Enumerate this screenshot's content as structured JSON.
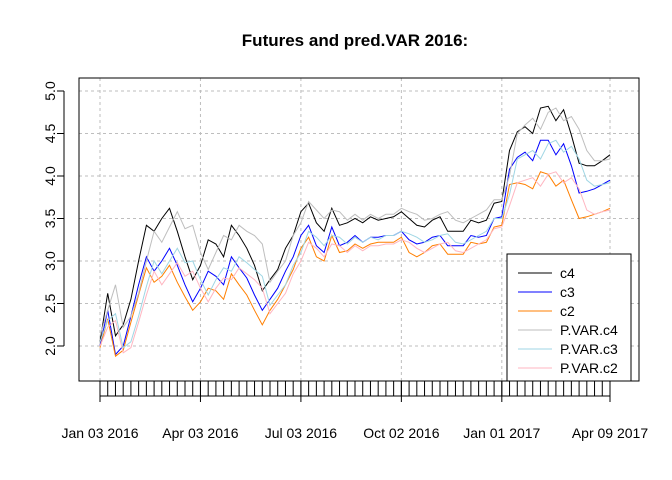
{
  "chart_data": {
    "type": "line",
    "title": "Futures and pred.VAR 2016:",
    "xlabel": "",
    "ylabel": "",
    "ylim": [
      1.6,
      5.1
    ],
    "y_ticks": [
      2.0,
      2.5,
      3.0,
      3.5,
      4.0,
      4.5,
      5.0
    ],
    "y_tick_labels": [
      "2.0",
      "2.5",
      "3.0",
      "3.5",
      "4.0",
      "4.5",
      "5.0"
    ],
    "n_points": 67,
    "x_tick_labels": [
      "Jan 03 2016",
      "Apr 03 2016",
      "Jul 03 2016",
      "Oct 02 2016",
      "Jan 01 2017",
      "Apr 09 2017"
    ],
    "x_tick_label_index": [
      0,
      13,
      26,
      39,
      52,
      66
    ],
    "grid": true,
    "legend_position": "bottom-right",
    "series": [
      {
        "name": "c4",
        "color": "#000000",
        "values": [
          2.05,
          2.62,
          2.12,
          2.25,
          2.55,
          3.0,
          3.42,
          3.35,
          3.5,
          3.62,
          3.35,
          3.05,
          2.78,
          2.95,
          3.25,
          3.2,
          3.05,
          3.42,
          3.3,
          3.15,
          2.95,
          2.65,
          2.78,
          2.9,
          3.15,
          3.3,
          3.58,
          3.68,
          3.45,
          3.35,
          3.62,
          3.42,
          3.45,
          3.5,
          3.45,
          3.52,
          3.48,
          3.5,
          3.52,
          3.58,
          3.5,
          3.42,
          3.4,
          3.48,
          3.52,
          3.35,
          3.35,
          3.35,
          3.48,
          3.45,
          3.48,
          3.68,
          3.7,
          4.3,
          4.52,
          4.58,
          4.5,
          4.8,
          4.82,
          4.65,
          4.78,
          4.48,
          4.15,
          4.12,
          4.12,
          4.18,
          4.25
        ]
      },
      {
        "name": "c3",
        "color": "#0000ff",
        "values": [
          2.0,
          2.42,
          1.9,
          2.0,
          2.35,
          2.72,
          3.05,
          2.88,
          3.0,
          3.15,
          2.95,
          2.72,
          2.52,
          2.68,
          2.88,
          2.82,
          2.72,
          3.05,
          2.92,
          2.8,
          2.6,
          2.42,
          2.55,
          2.68,
          2.88,
          3.05,
          3.3,
          3.42,
          3.18,
          3.1,
          3.4,
          3.18,
          3.22,
          3.3,
          3.22,
          3.28,
          3.28,
          3.3,
          3.3,
          3.35,
          3.25,
          3.2,
          3.22,
          3.28,
          3.3,
          3.18,
          3.18,
          3.18,
          3.3,
          3.28,
          3.3,
          3.5,
          3.52,
          4.08,
          4.22,
          4.28,
          4.18,
          4.42,
          4.42,
          4.25,
          4.38,
          4.12,
          3.8,
          3.82,
          3.85,
          3.9,
          3.95
        ]
      },
      {
        "name": "c2",
        "color": "#ff7f00",
        "values": [
          1.98,
          2.32,
          1.88,
          1.95,
          2.28,
          2.6,
          2.92,
          2.75,
          2.82,
          2.95,
          2.75,
          2.58,
          2.42,
          2.52,
          2.68,
          2.65,
          2.55,
          2.85,
          2.72,
          2.6,
          2.42,
          2.25,
          2.42,
          2.55,
          2.72,
          2.9,
          3.15,
          3.28,
          3.05,
          3.0,
          3.3,
          3.1,
          3.12,
          3.2,
          3.15,
          3.2,
          3.22,
          3.22,
          3.22,
          3.28,
          3.1,
          3.05,
          3.1,
          3.18,
          3.2,
          3.08,
          3.08,
          3.08,
          3.22,
          3.2,
          3.22,
          3.4,
          3.42,
          3.9,
          3.92,
          3.9,
          3.85,
          4.05,
          4.02,
          3.88,
          3.95,
          3.72,
          3.5,
          3.52,
          3.55,
          3.58,
          3.62
        ]
      },
      {
        "name": "P.VAR.c4",
        "color": "#bebebe",
        "values": [
          2.12,
          2.42,
          2.72,
          2.22,
          2.35,
          2.62,
          3.0,
          3.35,
          3.22,
          3.4,
          3.58,
          3.38,
          3.42,
          3.1,
          2.9,
          3.1,
          3.3,
          3.25,
          3.42,
          3.35,
          3.3,
          3.2,
          2.75,
          2.88,
          3.0,
          3.3,
          3.45,
          3.7,
          3.6,
          3.5,
          3.6,
          3.58,
          3.48,
          3.55,
          3.48,
          3.55,
          3.5,
          3.55,
          3.55,
          3.62,
          3.58,
          3.55,
          3.48,
          3.5,
          3.55,
          3.58,
          3.48,
          3.45,
          3.5,
          3.55,
          3.6,
          3.72,
          3.72,
          4.0,
          4.5,
          4.6,
          4.68,
          4.55,
          4.75,
          4.8,
          4.65,
          4.7,
          4.55,
          4.3,
          4.18,
          4.18,
          4.2
        ]
      },
      {
        "name": "P.VAR.c3",
        "color": "#9fd6e4",
        "values": [
          2.05,
          2.3,
          2.38,
          1.98,
          2.05,
          2.35,
          2.7,
          3.0,
          2.85,
          3.0,
          3.15,
          2.98,
          3.0,
          2.78,
          2.6,
          2.78,
          2.92,
          2.88,
          3.05,
          2.98,
          2.9,
          2.82,
          2.48,
          2.6,
          2.72,
          2.95,
          3.1,
          3.35,
          3.28,
          3.18,
          3.3,
          3.28,
          3.2,
          3.28,
          3.22,
          3.28,
          3.25,
          3.3,
          3.3,
          3.35,
          3.32,
          3.28,
          3.22,
          3.25,
          3.3,
          3.32,
          3.22,
          3.2,
          3.25,
          3.3,
          3.35,
          3.5,
          3.5,
          3.78,
          4.2,
          4.25,
          4.3,
          4.2,
          4.38,
          4.42,
          4.28,
          4.35,
          4.2,
          3.95,
          3.88,
          3.9,
          3.92
        ]
      },
      {
        "name": "P.VAR.c2",
        "color": "#ffb6c1",
        "values": [
          2.0,
          2.22,
          2.3,
          1.92,
          1.98,
          2.28,
          2.6,
          2.88,
          2.72,
          2.85,
          2.98,
          2.82,
          2.88,
          2.68,
          2.52,
          2.68,
          2.8,
          2.78,
          2.92,
          2.85,
          2.78,
          2.68,
          2.38,
          2.5,
          2.62,
          2.85,
          3.0,
          3.22,
          3.15,
          3.05,
          3.2,
          3.18,
          3.1,
          3.18,
          3.12,
          3.18,
          3.18,
          3.2,
          3.2,
          3.25,
          3.22,
          3.15,
          3.1,
          3.15,
          3.2,
          3.22,
          3.12,
          3.1,
          3.15,
          3.2,
          3.25,
          3.38,
          3.4,
          3.65,
          3.92,
          3.95,
          3.98,
          3.88,
          4.02,
          4.05,
          3.92,
          3.98,
          3.85,
          3.6,
          3.55,
          3.58,
          3.6
        ]
      }
    ]
  }
}
